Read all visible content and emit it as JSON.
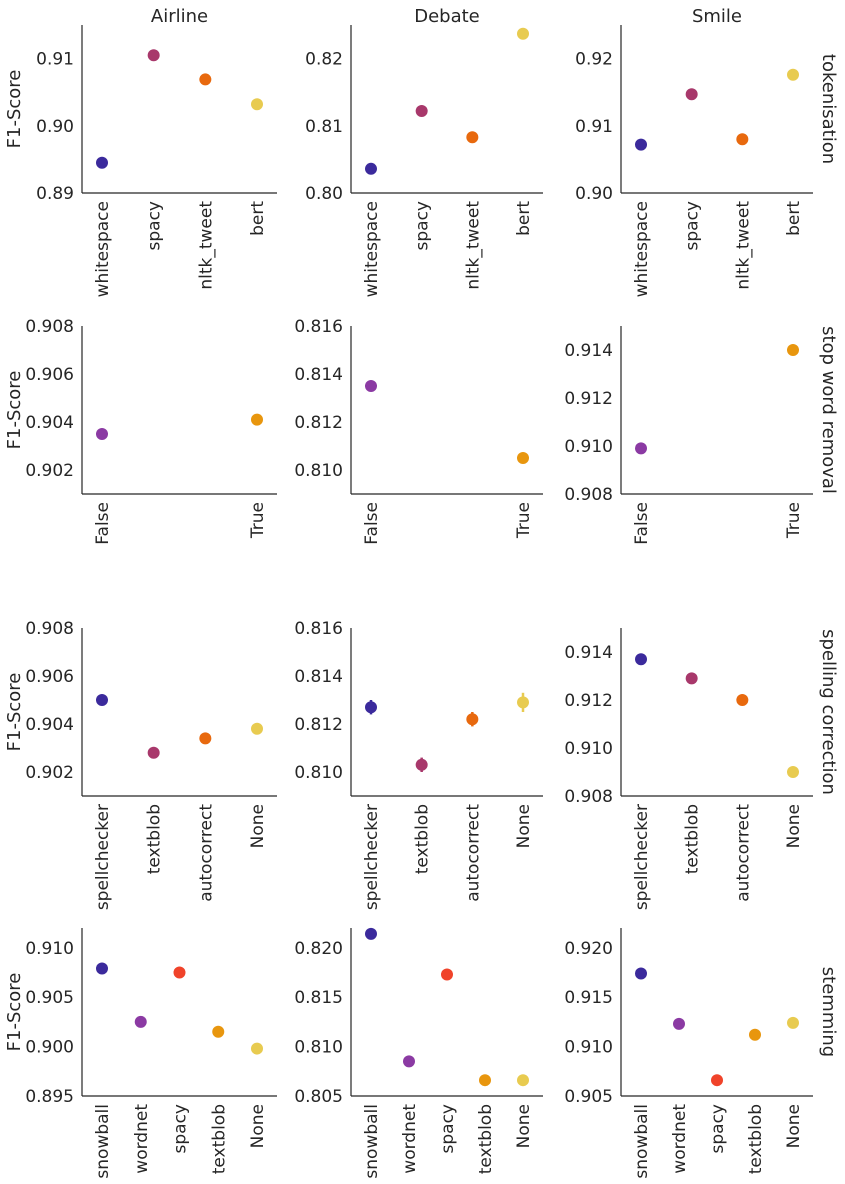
{
  "figure": {
    "col_titles": [
      "Airline",
      "Debate",
      "Smile"
    ],
    "row_titles": [
      "tokenisation",
      "stop word removal",
      "spelling correction",
      "stemming"
    ],
    "ylabel": "F1-Score"
  },
  "chart_data": {
    "type": "scatter",
    "layout": "facet-grid 4 rows x 3 columns (point plots with error bars)",
    "ylabel": "F1-Score",
    "grid": false,
    "panels": [
      {
        "row": "tokenisation",
        "col": "Airline",
        "categories": [
          "whitespace",
          "spacy",
          "nltk_tweet",
          "bert"
        ],
        "values": [
          0.8945,
          0.9105,
          0.9069,
          0.9032
        ],
        "errors": [
          0.0003,
          0.0003,
          0.0003,
          0.0003
        ],
        "colors": [
          "#3b2a9c",
          "#a8386b",
          "#e8690e",
          "#e8cb50"
        ],
        "ylim": [
          0.89,
          0.915
        ],
        "yticks": [
          "0.89",
          "0.90",
          "0.91"
        ]
      },
      {
        "row": "tokenisation",
        "col": "Debate",
        "categories": [
          "whitespace",
          "spacy",
          "nltk_tweet",
          "bert"
        ],
        "values": [
          0.8036,
          0.8122,
          0.8083,
          0.8237
        ],
        "errors": [
          0.0003,
          0.0003,
          0.0003,
          0.0003
        ],
        "colors": [
          "#3b2a9c",
          "#a8386b",
          "#e8690e",
          "#e8cb50"
        ],
        "ylim": [
          0.8,
          0.825
        ],
        "yticks": [
          "0.80",
          "0.81",
          "0.82"
        ]
      },
      {
        "row": "tokenisation",
        "col": "Smile",
        "categories": [
          "whitespace",
          "spacy",
          "nltk_tweet",
          "bert"
        ],
        "values": [
          0.9072,
          0.9147,
          0.908,
          0.9176
        ],
        "errors": [
          0.0003,
          0.0003,
          0.0003,
          0.0003
        ],
        "colors": [
          "#3b2a9c",
          "#a8386b",
          "#e8690e",
          "#e8cb50"
        ],
        "ylim": [
          0.9,
          0.925
        ],
        "yticks": [
          "0.90",
          "0.91",
          "0.92"
        ]
      },
      {
        "row": "stop word removal",
        "col": "Airline",
        "categories": [
          "False",
          "True"
        ],
        "values": [
          0.9035,
          0.9041
        ],
        "errors": [
          5e-05,
          5e-05
        ],
        "colors": [
          "#8b3aa3",
          "#e8960e"
        ],
        "ylim": [
          0.901,
          0.908
        ],
        "yticks": [
          "0.902",
          "0.904",
          "0.906",
          "0.908"
        ]
      },
      {
        "row": "stop word removal",
        "col": "Debate",
        "categories": [
          "False",
          "True"
        ],
        "values": [
          0.8135,
          0.8105
        ],
        "errors": [
          5e-05,
          5e-05
        ],
        "colors": [
          "#8b3aa3",
          "#e8960e"
        ],
        "ylim": [
          0.809,
          0.816
        ],
        "yticks": [
          "0.810",
          "0.812",
          "0.814",
          "0.816"
        ]
      },
      {
        "row": "stop word removal",
        "col": "Smile",
        "categories": [
          "False",
          "True"
        ],
        "values": [
          0.9099,
          0.914
        ],
        "errors": [
          5e-05,
          5e-05
        ],
        "colors": [
          "#8b3aa3",
          "#e8960e"
        ],
        "ylim": [
          0.908,
          0.915
        ],
        "yticks": [
          "0.908",
          "0.910",
          "0.912",
          "0.914"
        ]
      },
      {
        "row": "spelling correction",
        "col": "Airline",
        "categories": [
          "spellchecker",
          "textblob",
          "autocorrect",
          "None"
        ],
        "values": [
          0.905,
          0.9028,
          0.9034,
          0.9038
        ],
        "errors": [
          8e-05,
          8e-05,
          8e-05,
          8e-05
        ],
        "colors": [
          "#3b2a9c",
          "#a8386b",
          "#e8690e",
          "#e8cb50"
        ],
        "ylim": [
          0.901,
          0.908
        ],
        "yticks": [
          "0.902",
          "0.904",
          "0.906",
          "0.908"
        ]
      },
      {
        "row": "spelling correction",
        "col": "Debate",
        "categories": [
          "spellchecker",
          "textblob",
          "autocorrect",
          "None"
        ],
        "values": [
          0.8127,
          0.8103,
          0.8122,
          0.8129
        ],
        "errors": [
          0.0003,
          0.0003,
          0.0003,
          0.0004
        ],
        "colors": [
          "#3b2a9c",
          "#a8386b",
          "#e8690e",
          "#e8cb50"
        ],
        "ylim": [
          0.809,
          0.816
        ],
        "yticks": [
          "0.810",
          "0.812",
          "0.814",
          "0.816"
        ]
      },
      {
        "row": "spelling correction",
        "col": "Smile",
        "categories": [
          "spellchecker",
          "textblob",
          "autocorrect",
          "None"
        ],
        "values": [
          0.9137,
          0.9129,
          0.912,
          0.909
        ],
        "errors": [
          8e-05,
          8e-05,
          8e-05,
          8e-05
        ],
        "colors": [
          "#3b2a9c",
          "#a8386b",
          "#e8690e",
          "#e8cb50"
        ],
        "ylim": [
          0.908,
          0.915
        ],
        "yticks": [
          "0.908",
          "0.910",
          "0.912",
          "0.914"
        ]
      },
      {
        "row": "stemming",
        "col": "Airline",
        "categories": [
          "snowball",
          "wordnet",
          "spacy",
          "textblob",
          "None"
        ],
        "values": [
          0.9079,
          0.9025,
          0.9075,
          0.9015,
          0.8998
        ],
        "errors": [
          0.0002,
          0.0002,
          0.0002,
          0.0002,
          0.0002
        ],
        "colors": [
          "#3b2a9c",
          "#8b3aa3",
          "#f0432a",
          "#e8960e",
          "#e8cb50"
        ],
        "ylim": [
          0.895,
          0.912
        ],
        "yticks": [
          "0.895",
          "0.900",
          "0.905",
          "0.910"
        ]
      },
      {
        "row": "stemming",
        "col": "Debate",
        "categories": [
          "snowball",
          "wordnet",
          "spacy",
          "textblob",
          "None"
        ],
        "values": [
          0.8214,
          0.8085,
          0.8173,
          0.8066,
          0.8066
        ],
        "errors": [
          0.0002,
          0.0002,
          0.0002,
          0.0002,
          0.0002
        ],
        "colors": [
          "#3b2a9c",
          "#8b3aa3",
          "#f0432a",
          "#e8960e",
          "#e8cb50"
        ],
        "ylim": [
          0.805,
          0.822
        ],
        "yticks": [
          "0.805",
          "0.810",
          "0.815",
          "0.820"
        ]
      },
      {
        "row": "stemming",
        "col": "Smile",
        "categories": [
          "snowball",
          "wordnet",
          "spacy",
          "textblob",
          "None"
        ],
        "values": [
          0.9174,
          0.9123,
          0.9066,
          0.9112,
          0.9124
        ],
        "errors": [
          0.0002,
          0.0002,
          0.0002,
          0.0002,
          0.0002
        ],
        "colors": [
          "#3b2a9c",
          "#8b3aa3",
          "#f0432a",
          "#e8960e",
          "#e8cb50"
        ],
        "ylim": [
          0.905,
          0.922
        ],
        "yticks": [
          "0.905",
          "0.910",
          "0.915",
          "0.920"
        ]
      }
    ]
  }
}
